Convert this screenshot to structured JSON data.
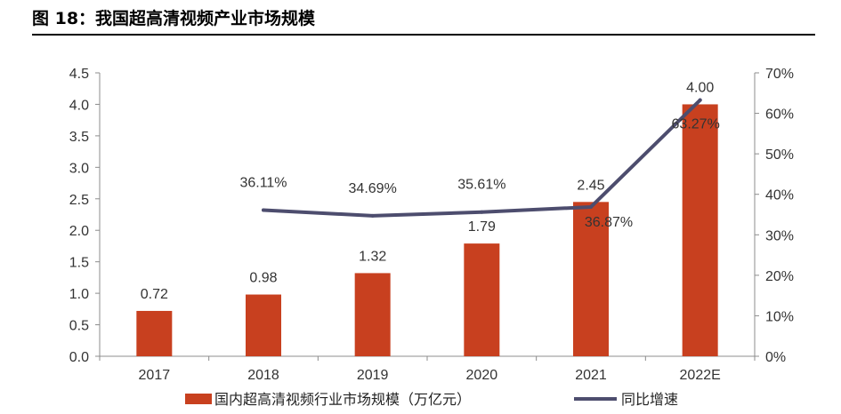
{
  "title": "图 18：我国超高清视频产业市场规模",
  "chart_data": {
    "type": "bar",
    "categories": [
      "2017",
      "2018",
      "2019",
      "2020",
      "2021",
      "2022E"
    ],
    "series": [
      {
        "name": "国内超高清视频行业市场规模（万亿元）",
        "type": "bar",
        "axis": "left",
        "color": "#c8401f",
        "values": [
          0.72,
          0.98,
          1.32,
          1.79,
          2.45,
          4.0
        ],
        "labels": [
          "0.72",
          "0.98",
          "1.32",
          "1.79",
          "2.45",
          "4.00"
        ]
      },
      {
        "name": "同比增速",
        "type": "line",
        "axis": "right",
        "color": "#4d4d6e",
        "values": [
          null,
          36.11,
          34.69,
          35.61,
          36.87,
          63.27
        ],
        "labels": [
          "",
          "36.11%",
          "34.69%",
          "35.61%",
          "36.87%",
          "63.27%"
        ]
      }
    ],
    "y_left": {
      "ylim": [
        0,
        4.5
      ],
      "ticks": [
        "0.0",
        "0.5",
        "1.0",
        "1.5",
        "2.0",
        "2.5",
        "3.0",
        "3.5",
        "4.0",
        "4.5"
      ]
    },
    "y_right": {
      "ylim": [
        0,
        70
      ],
      "ticks": [
        "0%",
        "10%",
        "20%",
        "30%",
        "40%",
        "50%",
        "60%",
        "70%"
      ]
    },
    "grid": false,
    "legend": "bottom"
  }
}
